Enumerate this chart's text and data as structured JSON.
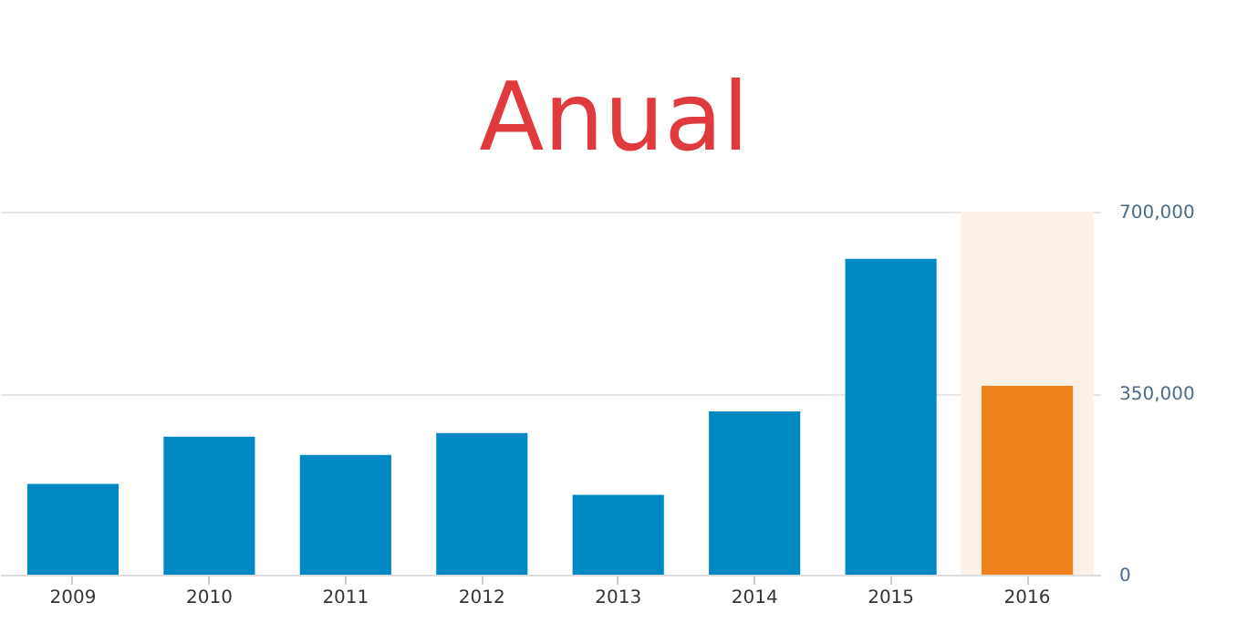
{
  "chart_data": {
    "type": "bar",
    "title": "Anual",
    "categories": [
      "2009",
      "2010",
      "2011",
      "2012",
      "2013",
      "2014",
      "2015",
      "2016"
    ],
    "values": [
      175000,
      266000,
      231000,
      273000,
      154000,
      315000,
      609000,
      364000
    ],
    "colors": [
      "#0088c2",
      "#0088c2",
      "#0088c2",
      "#0088c2",
      "#0088c2",
      "#0088c2",
      "#0088c2",
      "#f0821e"
    ],
    "ylim": [
      0,
      700000
    ],
    "yticks": [
      {
        "value": 0,
        "label": "0"
      },
      {
        "value": 350000,
        "label": "350,000"
      },
      {
        "value": 700000,
        "label": "700,000"
      }
    ],
    "bands": [
      {
        "axis": "x",
        "from": "2016",
        "to": "2016",
        "color": "#fdf0e6"
      }
    ],
    "grid": "y"
  }
}
